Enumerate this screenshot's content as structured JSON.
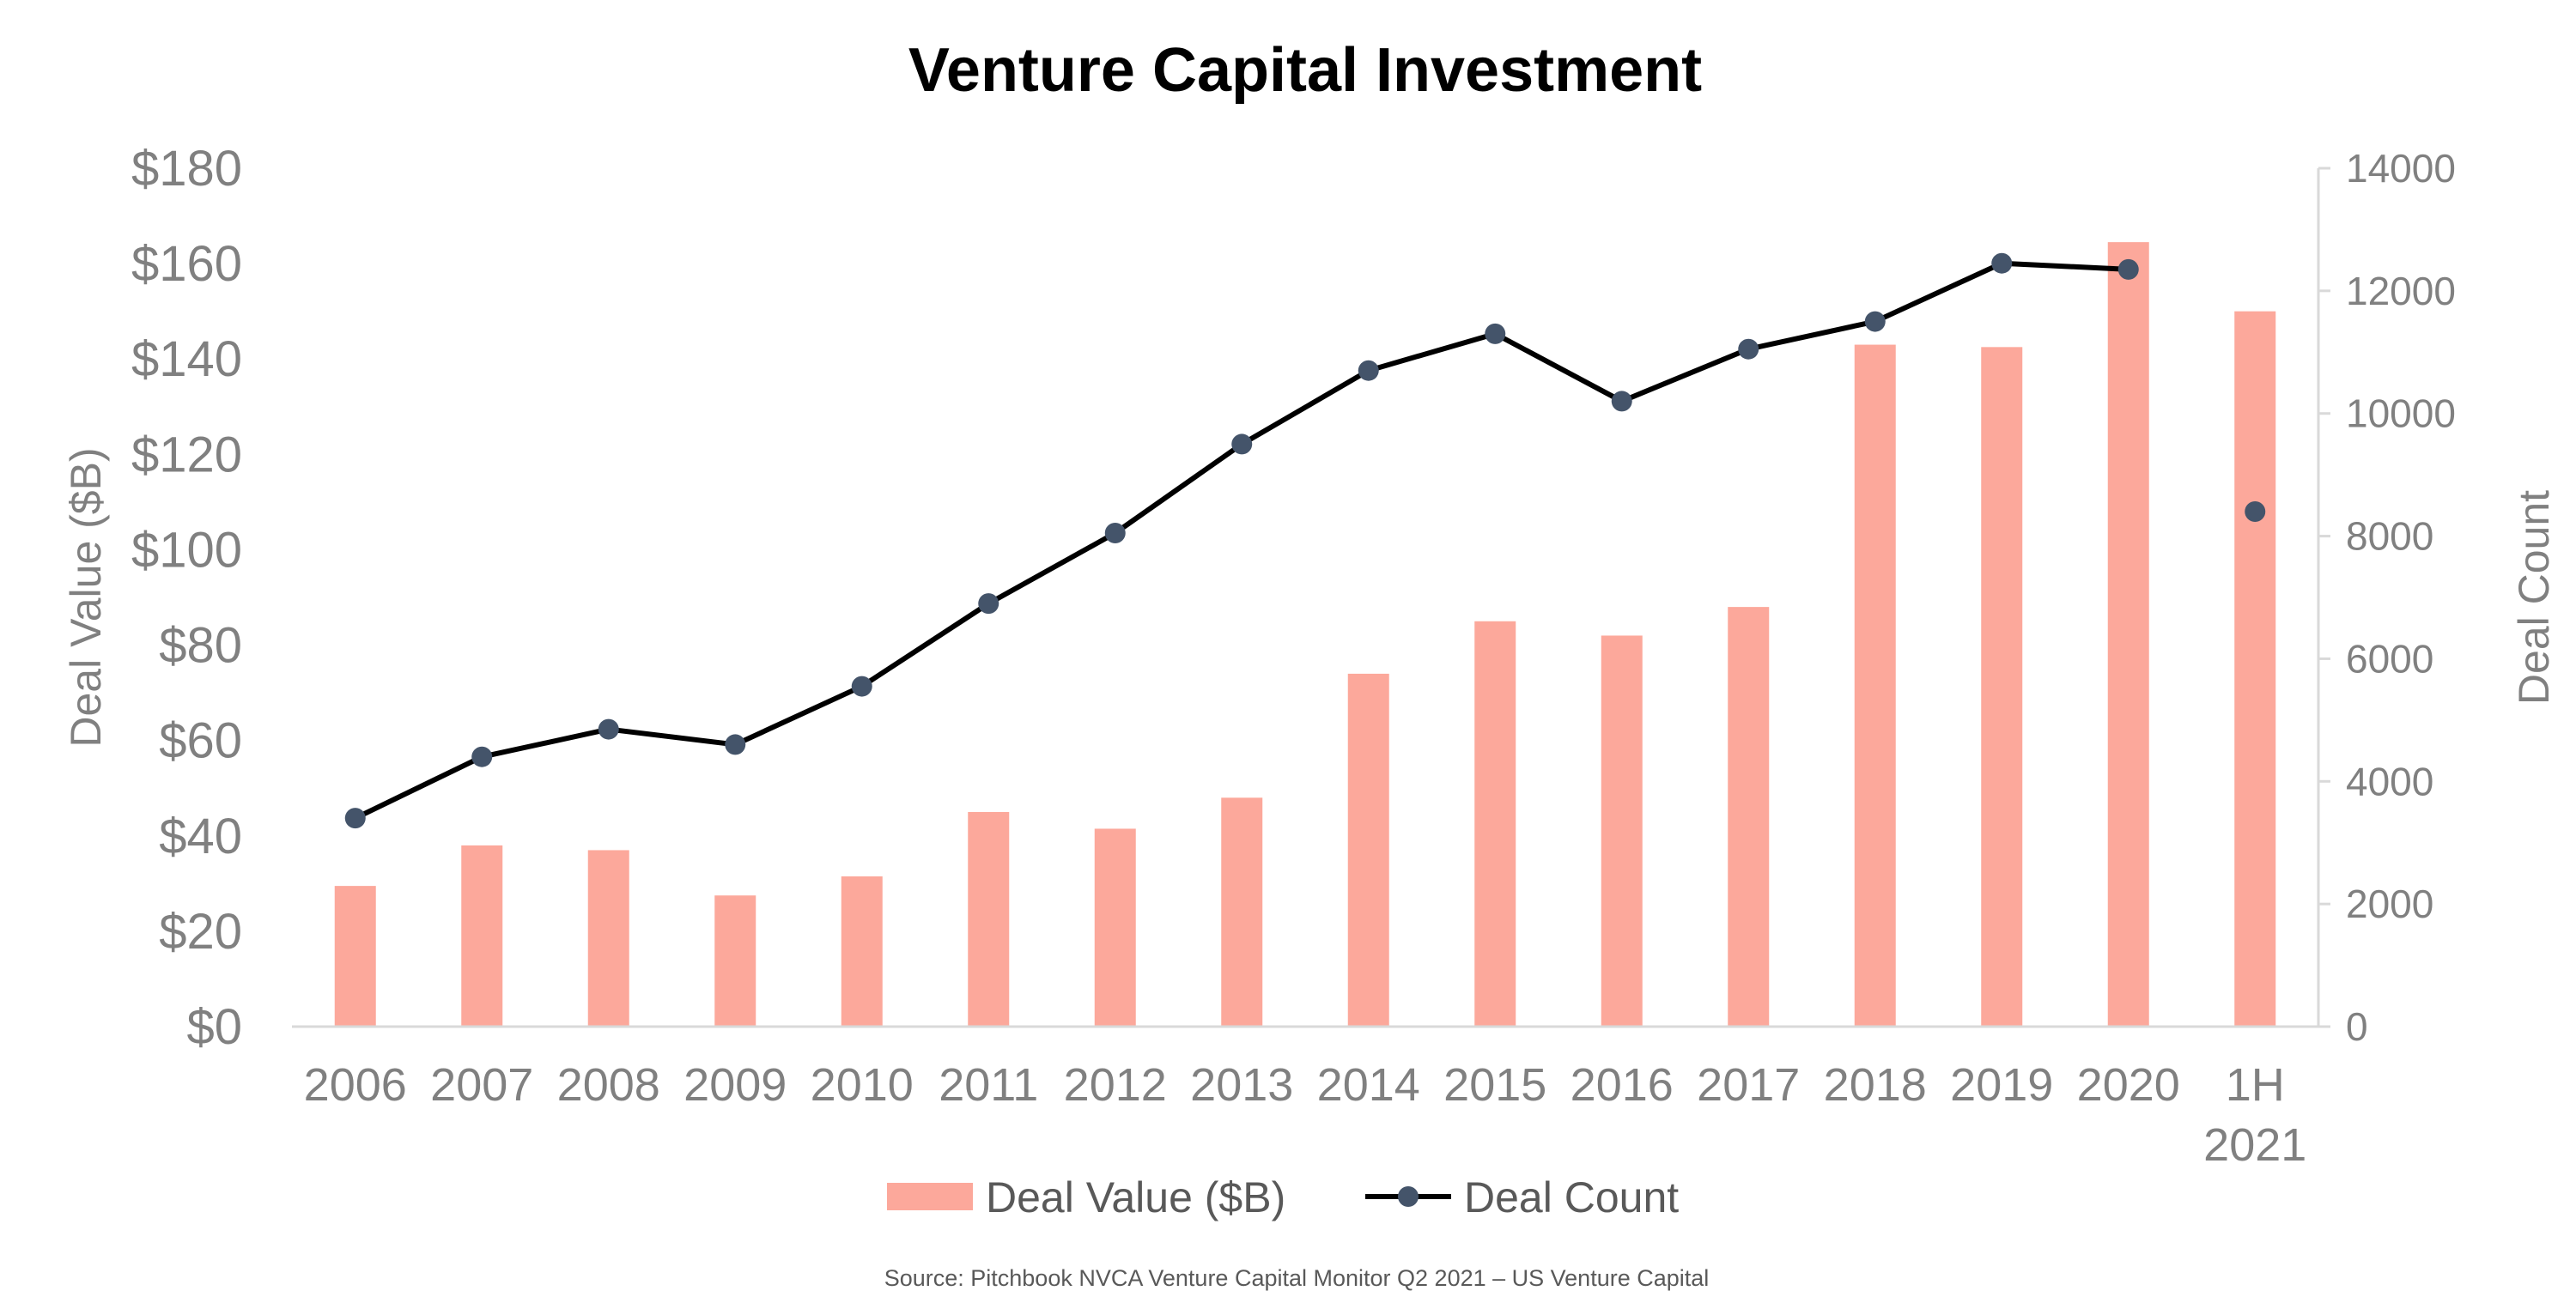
{
  "chart_data": {
    "type": "bar",
    "title": "Venture Capital Investment",
    "source": "Source: Pitchbook NVCA Venture Capital Monitor Q2 2021 – US Venture Capital",
    "categories": [
      [
        "2006"
      ],
      [
        "2007"
      ],
      [
        "2008"
      ],
      [
        "2009"
      ],
      [
        "2010"
      ],
      [
        "2011"
      ],
      [
        "2012"
      ],
      [
        "2013"
      ],
      [
        "2014"
      ],
      [
        "2015"
      ],
      [
        "2016"
      ],
      [
        "2017"
      ],
      [
        "2018"
      ],
      [
        "2019"
      ],
      [
        "2020"
      ],
      [
        "1H",
        "2021"
      ]
    ],
    "ylabel": "Deal Value ($B)",
    "y2label": "Deal Count",
    "ylim": [
      0,
      180
    ],
    "y2lim": [
      0,
      14000
    ],
    "yticks": [
      0,
      20,
      40,
      60,
      80,
      100,
      120,
      140,
      160,
      180
    ],
    "yticklabels": [
      "$0",
      "$20",
      "$40",
      "$60",
      "$80",
      "$100",
      "$120",
      "$140",
      "$160",
      "$180"
    ],
    "y2ticks": [
      0,
      2000,
      4000,
      6000,
      8000,
      10000,
      12000,
      14000
    ],
    "y2ticklabels": [
      "0",
      "2000",
      "4000",
      "6000",
      "8000",
      "10000",
      "12000",
      "14000"
    ],
    "legend_position": "bottom",
    "series": [
      {
        "name": "Deal Value ($B)",
        "type": "bar",
        "axis": "left",
        "color": "#FCA89B",
        "values": [
          29.5,
          38,
          37,
          27.5,
          31.5,
          45,
          41.5,
          48,
          74,
          85,
          82,
          88,
          143,
          142.5,
          164.5,
          150
        ]
      },
      {
        "name": "Deal Count",
        "type": "line",
        "axis": "right",
        "color": "#000000",
        "marker_color": "#44546A",
        "values": [
          3400,
          4400,
          4850,
          4600,
          5550,
          6900,
          8050,
          9500,
          10700,
          11300,
          10200,
          11050,
          11500,
          12450,
          12350,
          8400
        ],
        "line_through_count": 15
      }
    ]
  }
}
